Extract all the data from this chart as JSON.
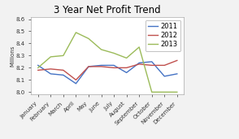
{
  "title": "3 Year Net Profit Trend",
  "ylabel": "Millions",
  "months": [
    "January",
    "February",
    "March",
    "April",
    "May",
    "June",
    "July",
    "August",
    "September",
    "October",
    "November",
    "December"
  ],
  "series": {
    "2011": [
      8.22,
      8.15,
      8.14,
      8.07,
      8.21,
      8.22,
      8.22,
      8.16,
      8.24,
      8.25,
      8.13,
      8.15
    ],
    "2012": [
      8.18,
      8.19,
      8.18,
      8.1,
      8.21,
      8.21,
      8.2,
      8.2,
      8.23,
      8.22,
      8.22,
      8.26
    ],
    "2013": [
      8.2,
      8.29,
      8.3,
      8.49,
      8.44,
      8.35,
      8.32,
      8.28,
      8.37,
      8.0,
      8.0,
      8.0
    ]
  },
  "colors": {
    "2011": "#4472C4",
    "2012": "#C0504D",
    "2013": "#9BBB59"
  },
  "ylim": [
    7.98,
    8.62
  ],
  "yticks": [
    8.0,
    8.1,
    8.2,
    8.3,
    8.4,
    8.5,
    8.6
  ],
  "background_color": "#F2F2F2",
  "plot_bg_color": "#FFFFFF",
  "title_fontsize": 8.5,
  "legend_fontsize": 6,
  "axis_fontsize": 5,
  "tick_fontsize": 5
}
